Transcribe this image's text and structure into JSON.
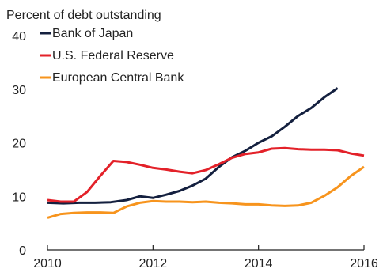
{
  "chart_data": {
    "type": "line",
    "ylabel": "Percent of debt outstanding",
    "xlim": [
      2010,
      2016
    ],
    "ylim": [
      0,
      40
    ],
    "x_ticks": [
      2010,
      2012,
      2014,
      2016
    ],
    "y_ticks": [
      0,
      10,
      20,
      30,
      40
    ],
    "grid": false,
    "legend": "top-left",
    "series": [
      {
        "name": "Bank of Japan",
        "color": "#14203f",
        "points": [
          [
            2010.0,
            8.8
          ],
          [
            2010.3,
            8.7
          ],
          [
            2010.6,
            8.8
          ],
          [
            2010.9,
            8.8
          ],
          [
            2011.2,
            8.9
          ],
          [
            2011.5,
            9.3
          ],
          [
            2011.75,
            10.0
          ],
          [
            2012.0,
            9.7
          ],
          [
            2012.25,
            10.3
          ],
          [
            2012.5,
            11.0
          ],
          [
            2012.75,
            12.0
          ],
          [
            2013.0,
            13.3
          ],
          [
            2013.25,
            15.5
          ],
          [
            2013.5,
            17.3
          ],
          [
            2013.75,
            18.5
          ],
          [
            2014.0,
            20.0
          ],
          [
            2014.25,
            21.2
          ],
          [
            2014.5,
            23.0
          ],
          [
            2014.75,
            25.0
          ],
          [
            2015.0,
            26.5
          ],
          [
            2015.25,
            28.5
          ],
          [
            2015.5,
            30.2
          ]
        ]
      },
      {
        "name": "U.S. Federal Reserve",
        "color": "#e32129",
        "points": [
          [
            2010.0,
            9.3
          ],
          [
            2010.25,
            9.0
          ],
          [
            2010.5,
            9.0
          ],
          [
            2010.75,
            10.8
          ],
          [
            2011.0,
            13.8
          ],
          [
            2011.25,
            16.6
          ],
          [
            2011.5,
            16.4
          ],
          [
            2011.75,
            15.9
          ],
          [
            2012.0,
            15.3
          ],
          [
            2012.25,
            15.0
          ],
          [
            2012.5,
            14.6
          ],
          [
            2012.75,
            14.3
          ],
          [
            2013.0,
            14.9
          ],
          [
            2013.25,
            16.0
          ],
          [
            2013.5,
            17.2
          ],
          [
            2013.75,
            17.9
          ],
          [
            2014.0,
            18.2
          ],
          [
            2014.25,
            18.9
          ],
          [
            2014.5,
            19.0
          ],
          [
            2014.75,
            18.8
          ],
          [
            2015.0,
            18.7
          ],
          [
            2015.25,
            18.7
          ],
          [
            2015.5,
            18.6
          ],
          [
            2015.75,
            18.0
          ],
          [
            2016.0,
            17.6
          ]
        ]
      },
      {
        "name": "European Central Bank",
        "color": "#f7941d",
        "points": [
          [
            2010.0,
            6.0
          ],
          [
            2010.25,
            6.7
          ],
          [
            2010.5,
            6.9
          ],
          [
            2010.75,
            7.0
          ],
          [
            2011.0,
            7.0
          ],
          [
            2011.25,
            6.9
          ],
          [
            2011.5,
            8.1
          ],
          [
            2011.75,
            8.8
          ],
          [
            2012.0,
            9.1
          ],
          [
            2012.25,
            9.0
          ],
          [
            2012.5,
            9.0
          ],
          [
            2012.75,
            8.9
          ],
          [
            2013.0,
            9.0
          ],
          [
            2013.25,
            8.8
          ],
          [
            2013.5,
            8.7
          ],
          [
            2013.75,
            8.5
          ],
          [
            2014.0,
            8.5
          ],
          [
            2014.25,
            8.3
          ],
          [
            2014.5,
            8.2
          ],
          [
            2014.75,
            8.3
          ],
          [
            2015.0,
            8.8
          ],
          [
            2015.25,
            10.1
          ],
          [
            2015.5,
            11.7
          ],
          [
            2015.75,
            13.8
          ],
          [
            2016.0,
            15.5
          ]
        ]
      }
    ]
  }
}
